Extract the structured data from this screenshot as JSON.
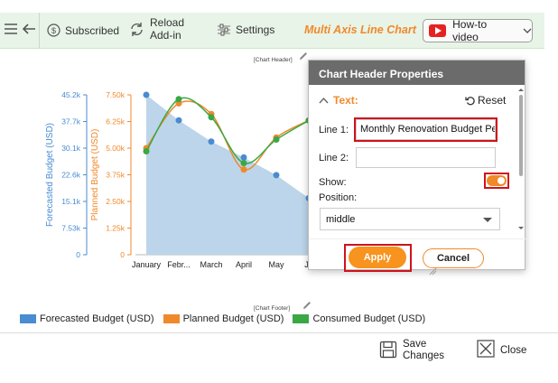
{
  "toolbar": {
    "subscribed_label": "Subscribed",
    "reload_label_1": "Reload",
    "reload_label_2": "Add-in",
    "settings_label": "Settings",
    "brand_title": "Multi Axis Line Chart",
    "howto_label": "How-to video"
  },
  "chart": {
    "header_tag": "[Chart Header]",
    "footer_tag": "[Chart Footer]"
  },
  "chart_data": {
    "type": "line",
    "categories": [
      "January",
      "Febr...",
      "March",
      "April",
      "May",
      "Ju"
    ],
    "y_left_outer": {
      "label": "Forecasted Budget (USD)",
      "ticks": [
        "45.2k",
        "37.7k",
        "30.1k",
        "22.6k",
        "15.1k",
        "7.53k",
        "0"
      ],
      "range": [
        0,
        45200
      ],
      "color": "#4a8bd1"
    },
    "y_left_inner": {
      "label": "Planned Budget (USD)",
      "ticks": [
        "7.50k",
        "6.25k",
        "5.00k",
        "3.75k",
        "2.50k",
        "1.25k",
        "0"
      ],
      "range": [
        0,
        7500
      ],
      "color": "#f0892a"
    },
    "series": [
      {
        "name": "Forecasted Budget (USD)",
        "axis": "outer",
        "style": "area",
        "color": "#4a8bd1",
        "values": [
          45200,
          38000,
          32000,
          27500,
          22500,
          16000
        ]
      },
      {
        "name": "Planned Budget (USD)",
        "axis": "inner",
        "style": "line",
        "color": "#f0892a",
        "values": [
          5000,
          7100,
          6600,
          4000,
          5500,
          6300
        ]
      },
      {
        "name": "Consumed Budget (USD)",
        "axis": "inner",
        "style": "line",
        "color": "#3aa845",
        "values": [
          4850,
          7300,
          6450,
          4300,
          5400,
          6300
        ]
      }
    ]
  },
  "legend": {
    "items": [
      {
        "label": "Forecasted Budget (USD)",
        "color": "#4a8bd1"
      },
      {
        "label": "Planned Budget (USD)",
        "color": "#f0892a"
      },
      {
        "label": "Consumed Budget (USD)",
        "color": "#3aa845"
      }
    ]
  },
  "bottom": {
    "save_1": "Save",
    "save_2": "Changes",
    "close_label": "Close"
  },
  "panel": {
    "title": "Chart Header Properties",
    "section": "Text:",
    "reset": "Reset",
    "line1_label": "Line 1:",
    "line1_value": "Monthly Renovation Budget Pe",
    "line2_label": "Line 2:",
    "line2_value": "",
    "show_label": "Show:",
    "show_value": true,
    "position_label": "Position:",
    "position_value": "middle",
    "apply": "Apply",
    "cancel": "Cancel"
  }
}
